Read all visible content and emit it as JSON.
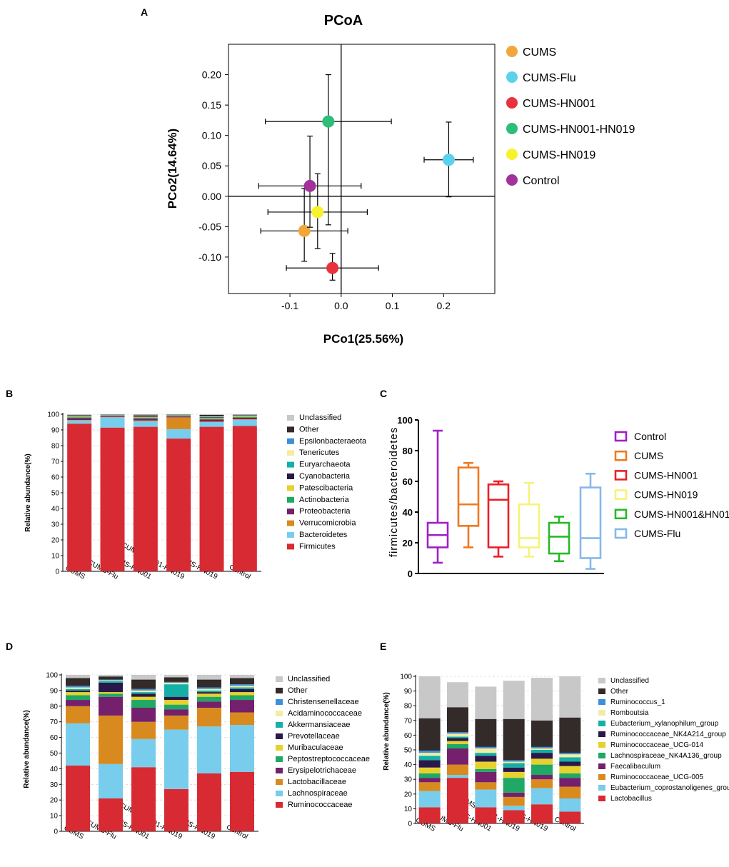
{
  "panel_letters": {
    "A": "A",
    "B": "B",
    "C": "C",
    "D": "D",
    "E": "E"
  },
  "pcoa": {
    "title": "PCoA",
    "xlabel": "PCo1(25.56%)",
    "ylabel": "PCo2(14.64%)",
    "x_ticks": [
      "-0.1",
      "0.0",
      "0.1",
      "0.2"
    ],
    "y_ticks": [
      "0.20",
      "0.15",
      "0.10",
      "0.05",
      "0.00",
      "-0.05",
      "-0.10"
    ],
    "legend": [
      "CUMS",
      "CUMS-Flu",
      "CUMS-HN001",
      "CUMS-HN001-HN019",
      "CUMS-HN019",
      "Control"
    ]
  },
  "panel_b": {
    "ylabel": "Relative abundance(%)",
    "y_ticks": [
      "0",
      "10",
      "20",
      "30",
      "40",
      "50",
      "60",
      "70",
      "80",
      "90",
      "100"
    ],
    "groups": [
      "CUMS",
      "CUMS-Flu",
      "CUMS-HN001",
      "CUMS-HN001-HN019",
      "CUMS-HN019",
      "Control"
    ],
    "legend": [
      "Unclassified",
      "Other",
      "Epsilonbacteraeota",
      "Tenericutes",
      "Euryarchaeota",
      "Cyanobacteria",
      "Patescibacteria",
      "Actinobacteria",
      "Proteobacteria",
      "Verrucomicrobia",
      "Bacteroidetes",
      "Firmicutes"
    ]
  },
  "panel_c": {
    "ylabel": "firmicutes/bacteroidetes",
    "y_ticks": [
      "0",
      "20",
      "40",
      "60",
      "80",
      "100"
    ],
    "legend": [
      "Control",
      "CUMS",
      "CUMS-HN001",
      "CUMS-HN019",
      "CUMS-HN001&HN019",
      "CUMS-Flu"
    ]
  },
  "panel_d": {
    "ylabel": "Relative abundance(%)",
    "y_ticks": [
      "0",
      "10",
      "20",
      "30",
      "40",
      "50",
      "60",
      "70",
      "80",
      "90",
      "100"
    ],
    "groups": [
      "CUMS",
      "CUMS-Flu",
      "CUMS-HN001",
      "CUMS-HN001-HN019",
      "CUMS-HN019",
      "Control"
    ],
    "legend": [
      "Unclassified",
      "Other",
      "Christensenellaceae",
      "Acidaminococcaceae",
      "Akkermansiaceae",
      "Prevotellaceae",
      "Muribaculaceae",
      "Peptostreptococcaceae",
      "Erysipelotrichaceae",
      "Lactobacillaceae",
      "Lachnospiraceae",
      "Ruminococcaceae"
    ]
  },
  "panel_e": {
    "ylabel": "Relative abundance(%)",
    "y_ticks": [
      "0",
      "10",
      "20",
      "30",
      "40",
      "50",
      "60",
      "70",
      "80",
      "90",
      "100"
    ],
    "groups": [
      "CUMS",
      "CUMS-Flu",
      "CUMS-HN001",
      "CUMS-HN001-HN019",
      "CUMS-HN019",
      "Control"
    ],
    "legend": [
      "Unclassified",
      "Other",
      "Ruminococcus_1",
      "Romboutsia",
      "Eubacterium_xylanophilum_group",
      "Ruminococcaceae_NK4A214_group",
      "Ruminococcaceae_UCG-014",
      "Lachnospiraceae_NK4A136_group",
      "Faecalibaculum",
      "Ruminococcaceae_UCG-005",
      "Eubacterium_coprostanoligenes_group",
      "Lactobacillus"
    ]
  },
  "chart_data": [
    {
      "id": "A",
      "type": "scatter",
      "title": "PCoA",
      "xlabel": "PCo1(25.56%)",
      "ylabel": "PCo2(14.64%)",
      "xlim": [
        -0.22,
        0.3
      ],
      "ylim": [
        -0.16,
        0.25
      ],
      "colors": [
        "#F2A73B",
        "#5BD1EE",
        "#E8323C",
        "#2DBE7A",
        "#F7F22D",
        "#A0339A"
      ],
      "points": [
        {
          "name": "CUMS",
          "x": -0.072,
          "y": -0.057,
          "xerr": 0.085,
          "yerr_up": 0.07,
          "yerr_dn": 0.05
        },
        {
          "name": "CUMS-Flu",
          "x": 0.21,
          "y": 0.06,
          "xerr": 0.048,
          "yerr_up": 0.062,
          "yerr_dn": 0.061
        },
        {
          "name": "CUMS-HN001",
          "x": -0.017,
          "y": -0.118,
          "xerr": 0.09,
          "yerr_up": 0.024,
          "yerr_dn": 0.02
        },
        {
          "name": "CUMS-HN001-HN019",
          "x": -0.025,
          "y": 0.123,
          "xerr": 0.123,
          "yerr_up": 0.077,
          "yerr_dn": 0.17
        },
        {
          "name": "CUMS-HN019",
          "x": -0.046,
          "y": -0.026,
          "xerr": 0.097,
          "yerr_up": 0.063,
          "yerr_dn": 0.06
        },
        {
          "name": "Control",
          "x": -0.061,
          "y": 0.017,
          "xerr": 0.1,
          "yerr_up": 0.082,
          "yerr_dn": 0.068
        }
      ]
    },
    {
      "id": "B",
      "type": "bar",
      "stacked": true,
      "ylabel": "Relative abundance(%)",
      "ylim": [
        0,
        100
      ],
      "categories": [
        "CUMS",
        "CUMS-Flu",
        "CUMS-HN001",
        "CUMS-HN001-HN019",
        "CUMS-HN019",
        "Control"
      ],
      "colors": [
        "#C8C8C8",
        "#332A2A",
        "#3D8FD8",
        "#F2EDA2",
        "#14AFA6",
        "#2A1848",
        "#E6D22E",
        "#20A865",
        "#74206C",
        "#D98A1E",
        "#77CDEB",
        "#D72A33"
      ],
      "series": [
        {
          "name": "Firmicutes",
          "values": [
            94,
            91.5,
            92,
            84.5,
            92,
            92.5
          ]
        },
        {
          "name": "Bacteroidetes",
          "values": [
            2,
            6.5,
            3.5,
            6,
            3,
            4
          ]
        },
        {
          "name": "Verrucomicrobia",
          "values": [
            0.3,
            0.2,
            0.5,
            7.5,
            0.3,
            0.3
          ]
        },
        {
          "name": "Proteobacteria",
          "values": [
            1.2,
            0.5,
            1.2,
            0.6,
            1.4,
            1.0
          ]
        },
        {
          "name": "Actinobacteria",
          "values": [
            0.6,
            0.3,
            0.5,
            0.3,
            0.4,
            0.4
          ]
        },
        {
          "name": "Patescibacteria",
          "values": [
            0.4,
            0.2,
            0.4,
            0.3,
            0.5,
            0.4
          ]
        },
        {
          "name": "Cyanobacteria",
          "values": [
            0.2,
            0.2,
            0.5,
            0.2,
            0.4,
            0.2
          ]
        },
        {
          "name": "Euryarchaeota",
          "values": [
            0.2,
            0.1,
            0.2,
            0.1,
            0.2,
            0.2
          ]
        },
        {
          "name": "Tenericutes",
          "values": [
            0.2,
            0.1,
            0.3,
            0.1,
            0.3,
            0.2
          ]
        },
        {
          "name": "Epsilonbacteraeota",
          "values": [
            0.1,
            0.1,
            0.1,
            0.1,
            0.1,
            0.1
          ]
        },
        {
          "name": "Other",
          "values": [
            0.4,
            0.2,
            0.5,
            0.2,
            1.0,
            0.4
          ]
        },
        {
          "name": "Unclassified",
          "values": [
            0.4,
            0.1,
            0.3,
            0.1,
            0.4,
            0.3
          ]
        }
      ]
    },
    {
      "id": "C",
      "type": "box",
      "ylabel": "firmicutes/bacteroidetes",
      "ylim": [
        0,
        100
      ],
      "groups": [
        {
          "name": "Control",
          "color": "#A020C8",
          "min": 7,
          "q1": 17,
          "median": 25,
          "q3": 33,
          "max": 93
        },
        {
          "name": "CUMS",
          "color": "#F07820",
          "min": 17,
          "q1": 31,
          "median": 45,
          "q3": 69,
          "max": 72
        },
        {
          "name": "CUMS-HN001",
          "color": "#E8202A",
          "min": 11,
          "q1": 17,
          "median": 48,
          "q3": 58,
          "max": 60
        },
        {
          "name": "CUMS-HN019",
          "color": "#F5F27A",
          "min": 11,
          "q1": 17,
          "median": 23,
          "q3": 45,
          "max": 59
        },
        {
          "name": "CUMS-HN001&HN019",
          "color": "#28B828",
          "min": 8,
          "q1": 13,
          "median": 24,
          "q3": 33,
          "max": 37
        },
        {
          "name": "CUMS-Flu",
          "color": "#86B8EC",
          "min": 3,
          "q1": 10,
          "median": 23,
          "q3": 56,
          "max": 65
        }
      ]
    },
    {
      "id": "D",
      "type": "bar",
      "stacked": true,
      "ylabel": "Relative abundance(%)",
      "ylim": [
        0,
        100
      ],
      "categories": [
        "CUMS",
        "CUMS-Flu",
        "CUMS-HN001",
        "CUMS-HN001-HN019",
        "CUMS-HN019",
        "Control"
      ],
      "colors": [
        "#C8C8C8",
        "#332A2A",
        "#3D8FD8",
        "#F2EDA2",
        "#14AFA6",
        "#2A1848",
        "#E6D22E",
        "#20A865",
        "#74206C",
        "#D98A1E",
        "#77CDEB",
        "#D72A33"
      ],
      "series": [
        {
          "name": "Ruminococcaceae",
          "values": [
            42,
            21,
            41,
            27,
            37,
            38
          ]
        },
        {
          "name": "Lachnospiraceae",
          "values": [
            27,
            22,
            18,
            38,
            30,
            30
          ]
        },
        {
          "name": "Lactobacillaceae",
          "values": [
            11,
            31,
            11,
            9,
            12,
            8
          ]
        },
        {
          "name": "Erysipelotrichaceae",
          "values": [
            4,
            12,
            9,
            4,
            4,
            8
          ]
        },
        {
          "name": "Peptostreptococcaceae",
          "values": [
            3,
            2,
            5,
            3,
            3,
            3
          ]
        },
        {
          "name": "Muribaculaceae",
          "values": [
            2,
            1,
            2,
            3,
            2,
            2
          ]
        },
        {
          "name": "Prevotellaceae",
          "values": [
            1,
            6,
            2,
            2,
            1,
            2
          ]
        },
        {
          "name": "Akkermansiaceae",
          "values": [
            1,
            1,
            1,
            8,
            1,
            1
          ]
        },
        {
          "name": "Acidaminococcaceae",
          "values": [
            1,
            0.5,
            1,
            1,
            1,
            1
          ]
        },
        {
          "name": "Christensenellaceae",
          "values": [
            1,
            0.5,
            1,
            0.5,
            1,
            1
          ]
        },
        {
          "name": "Other",
          "values": [
            5,
            2,
            6,
            3,
            5,
            4
          ]
        },
        {
          "name": "Unclassified",
          "values": [
            2,
            1,
            3,
            1.5,
            3,
            2
          ]
        }
      ]
    },
    {
      "id": "E",
      "type": "bar",
      "stacked": true,
      "ylabel": "Relative abundance(%)",
      "ylim": [
        0,
        100
      ],
      "categories": [
        "CUMS",
        "CUMS-Flu",
        "CUMS-HN001",
        "CUMS-HN001-HN019",
        "CUMS-HN019",
        "Control"
      ],
      "colors": [
        "#C8C8C8",
        "#332A2A",
        "#3D8FD8",
        "#F2EDA2",
        "#14AFA6",
        "#2A1848",
        "#E6D22E",
        "#20A865",
        "#74206C",
        "#D98A1E",
        "#77CDEB",
        "#D72A33"
      ],
      "series": [
        {
          "name": "Lactobacillus",
          "values": [
            11,
            31,
            11,
            9,
            13,
            8
          ]
        },
        {
          "name": "Eubacterium_coprostanoligenes_group",
          "values": [
            11,
            2,
            12,
            3,
            11,
            9
          ]
        },
        {
          "name": "Ruminococcaceae_UCG-005",
          "values": [
            6,
            7,
            5,
            6,
            6,
            8
          ]
        },
        {
          "name": "Faecalibaculum",
          "values": [
            3,
            11,
            7,
            3,
            3,
            6
          ]
        },
        {
          "name": "Lachnospiraceae_NK4A136_group",
          "values": [
            3,
            3,
            2,
            10,
            7,
            3
          ]
        },
        {
          "name": "Ruminococcaceae_UCG-014",
          "values": [
            4,
            2,
            5,
            4,
            4,
            5
          ]
        },
        {
          "name": "Ruminococcaceae_NK4A214_group",
          "values": [
            5,
            2,
            4,
            3,
            4,
            3
          ]
        },
        {
          "name": "Eubacterium_xylanophilum_group",
          "values": [
            3,
            1,
            2,
            3,
            2,
            3
          ]
        },
        {
          "name": "Romboutsia",
          "values": [
            2,
            2,
            3,
            1,
            1,
            2
          ]
        },
        {
          "name": "Ruminococcus_1",
          "values": [
            1.5,
            1,
            1,
            1,
            1,
            1
          ]
        },
        {
          "name": "Other",
          "values": [
            22,
            17,
            19,
            28,
            18,
            24
          ]
        },
        {
          "name": "Unclassified",
          "values": [
            28.5,
            17,
            22,
            26,
            29,
            28
          ]
        }
      ]
    }
  ]
}
